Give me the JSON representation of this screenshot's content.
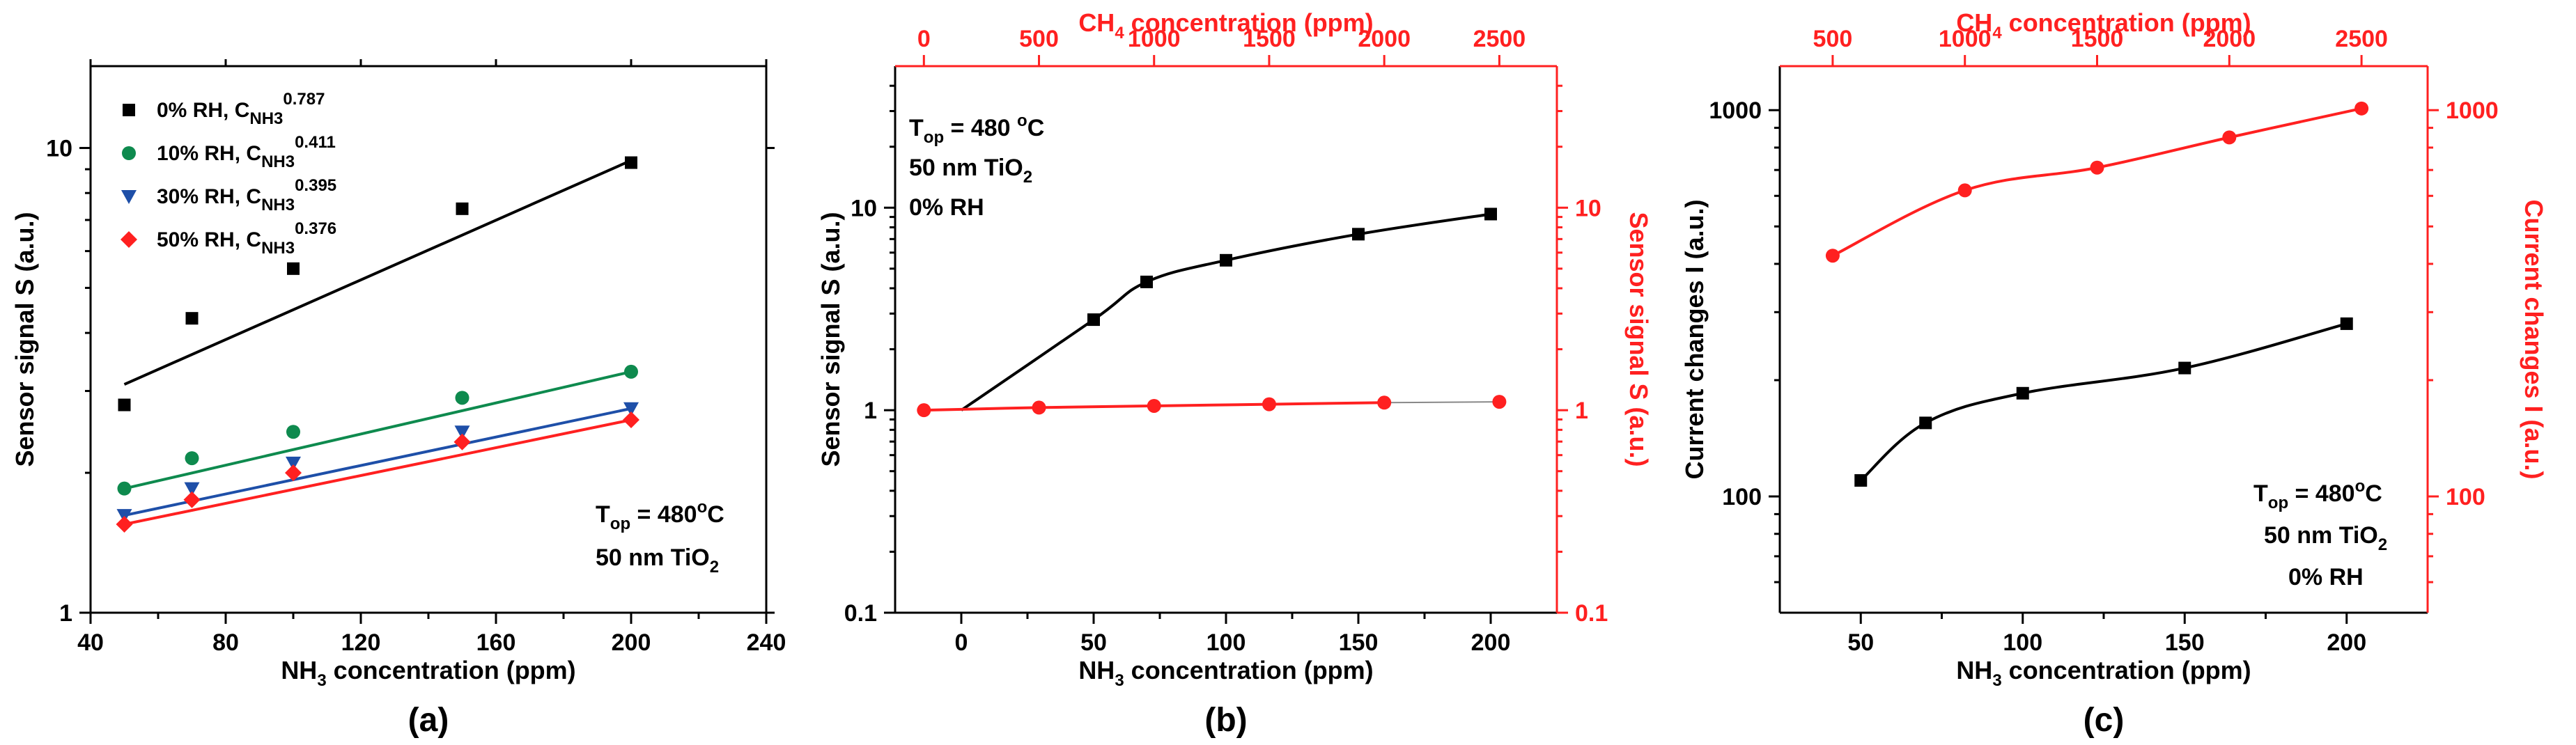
{
  "chart_data": [
    {
      "id": "a",
      "type": "scatter",
      "panel_label": "(a)",
      "xlabel": {
        "pre": "NH",
        "sub": "3",
        "post": " concentration (ppm)"
      },
      "ylabel": "Sensor signal S (a.u.)",
      "xlim": [
        40,
        240
      ],
      "ylim": [
        1,
        15
      ],
      "yscale": "log",
      "x_ticks": [
        "40",
        "80",
        "120",
        "160",
        "200",
        "240"
      ],
      "y_ticks": [
        "1",
        "10"
      ],
      "annotation": [
        {
          "pre": "T",
          "sub": "op",
          "post": " = 480",
          "sup": "o",
          "end": "C"
        },
        {
          "pre": "50 nm TiO",
          "sub": "2",
          "post": ""
        }
      ],
      "series": [
        {
          "name": "0% RH",
          "color": "#000000",
          "marker": "square",
          "x": [
            50,
            70,
            100,
            150,
            200
          ],
          "y": [
            2.8,
            4.3,
            5.5,
            7.4,
            9.3
          ],
          "fit_exponent": "0.787",
          "fit_y": [
            3.1,
            9.4
          ]
        },
        {
          "name": "10% RH",
          "color": "#0e8a4e",
          "marker": "circle",
          "x": [
            50,
            70,
            100,
            150,
            200
          ],
          "y": [
            1.85,
            2.15,
            2.45,
            2.9,
            3.3
          ],
          "fit_exponent": "0.411",
          "fit_y": [
            1.85,
            3.3
          ]
        },
        {
          "name": "30% RH",
          "color": "#1e4fa8",
          "marker": "triangle",
          "x": [
            50,
            70,
            100,
            150,
            200
          ],
          "y": [
            1.62,
            1.85,
            2.1,
            2.45,
            2.75
          ],
          "fit_exponent": "0.395",
          "fit_y": [
            1.62,
            2.75
          ]
        },
        {
          "name": "50% RH",
          "color": "#ff2020",
          "marker": "diamond",
          "x": [
            50,
            70,
            100,
            150,
            200
          ],
          "y": [
            1.55,
            1.75,
            2.0,
            2.33,
            2.6
          ],
          "fit_exponent": "0.376",
          "fit_y": [
            1.55,
            2.6
          ]
        }
      ],
      "legend_position": "top-left",
      "legend_suffix": {
        "pre": "C",
        "sub": "NH3"
      }
    },
    {
      "id": "b",
      "type": "line",
      "panel_label": "(b)",
      "xlabel": {
        "pre": "NH",
        "sub": "3",
        "post": " concentration (ppm)"
      },
      "x2label": {
        "pre": "CH",
        "sub": "4",
        "post": " concentration (ppm)"
      },
      "ylabel": "Sensor signal S (a.u.)",
      "y2label": "Sensor signal S (a.u.)",
      "xlim": [
        -25,
        225
      ],
      "x2lim": [
        -125,
        2750
      ],
      "ylim": [
        0.1,
        50
      ],
      "yscale": "log",
      "x_ticks": [
        "0",
        "50",
        "100",
        "150",
        "200"
      ],
      "x2_ticks": [
        "0",
        "500",
        "1000",
        "1500",
        "2000",
        "2500"
      ],
      "y_ticks": [
        "0.1",
        "1",
        "10"
      ],
      "y2_ticks": [
        "0.1",
        "1",
        "10"
      ],
      "annotation": [
        {
          "pre": "T",
          "sub": "op",
          "post": " = 480 ",
          "sup": "o",
          "end": "C"
        },
        {
          "pre": "50 nm TiO",
          "sub": "2",
          "post": ""
        },
        {
          "pre": "0% RH",
          "sub": "",
          "post": ""
        }
      ],
      "series": [
        {
          "name": "NH3",
          "color": "#000000",
          "marker": "square",
          "axis": "bottom",
          "x": [
            0,
            50,
            70,
            100,
            150,
            200
          ],
          "y": [
            1.0,
            2.8,
            4.3,
            5.5,
            7.4,
            9.3
          ]
        },
        {
          "name": "CH4",
          "color": "#ff2020",
          "marker": "circle",
          "axis": "top",
          "x": [
            0,
            500,
            1000,
            1500,
            2000,
            2500
          ],
          "y": [
            1.0,
            1.03,
            1.05,
            1.07,
            1.09,
            1.1
          ]
        }
      ]
    },
    {
      "id": "c",
      "type": "line",
      "panel_label": "(c)",
      "xlabel": {
        "pre": "NH",
        "sub": "3",
        "post": " concentration (ppm)"
      },
      "x2label": {
        "pre": "CH",
        "sub": "4",
        "post": " concentration (ppm)"
      },
      "ylabel": "Current changes I (a.u.)",
      "y2label": "Current changes I (a.u.)",
      "xlim": [
        25,
        225
      ],
      "x2lim": [
        300,
        2750
      ],
      "ylim": [
        50,
        1300
      ],
      "yscale": "log",
      "x_ticks": [
        "50",
        "100",
        "150",
        "200"
      ],
      "x2_ticks": [
        "500",
        "1000",
        "1500",
        "2000",
        "2500"
      ],
      "y_ticks": [
        "100",
        "1000"
      ],
      "y2_ticks": [
        "100",
        "1000"
      ],
      "annotation": [
        {
          "pre": "T",
          "sub": "op",
          "post": " = 480",
          "sup": "o",
          "end": "C"
        },
        {
          "pre": "50 nm TiO",
          "sub": "2",
          "post": ""
        },
        {
          "pre": "0% RH",
          "sub": "",
          "post": ""
        }
      ],
      "series": [
        {
          "name": "NH3",
          "color": "#000000",
          "marker": "square",
          "axis": "bottom",
          "x": [
            50,
            70,
            100,
            150,
            200
          ],
          "y": [
            110,
            155,
            185,
            215,
            280
          ]
        },
        {
          "name": "CH4",
          "color": "#ff2020",
          "marker": "circle",
          "axis": "top",
          "x": [
            500,
            1000,
            1500,
            2000,
            2500
          ],
          "y": [
            420,
            620,
            710,
            850,
            1010
          ]
        }
      ]
    }
  ]
}
